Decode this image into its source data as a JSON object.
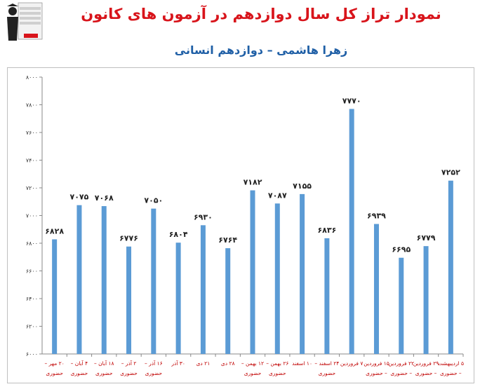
{
  "header": {
    "title": "نمودار تراز کل سال دوازدهم در آزمون های کانون",
    "subtitle": "زهرا هاشمی – دوازدهم انسانی"
  },
  "colors": {
    "bar": "#5b9bd5",
    "title": "#d8141b",
    "subtitle": "#1f5fa6",
    "xlabel": "#c00000"
  },
  "chart_data": {
    "type": "bar",
    "title": "نمودار تراز کل سال دوازدهم در آزمون های کانون",
    "subtitle": "زهرا هاشمی – دوازدهم انسانی",
    "ylim": [
      6000,
      8000
    ],
    "yticks": [
      "۶۰۰۰",
      "۶۲۰۰",
      "۶۴۰۰",
      "۶۶۰۰",
      "۶۸۰۰",
      "۷۰۰۰",
      "۷۲۰۰",
      "۷۴۰۰",
      "۷۶۰۰",
      "۷۸۰۰",
      "۸۰۰۰"
    ],
    "categories": [
      [
        "۲۰ مهر –",
        "حضوری"
      ],
      [
        "۴ آبان –",
        "حضوری"
      ],
      [
        "۱۸ آبان –",
        "حضوری"
      ],
      [
        "۲ آذر –",
        "حضوری"
      ],
      [
        "۱۶ آذر –",
        "حضوری"
      ],
      [
        "۳۰ آذر",
        ""
      ],
      [
        "۲۱ دی",
        ""
      ],
      [
        "۲۸ دی",
        ""
      ],
      [
        "۱۲ بهمن –",
        "حضوری"
      ],
      [
        "۲۶ بهمن –",
        "حضوری"
      ],
      [
        "۱۰ اسفند",
        ""
      ],
      [
        "۲۴ اسفند –",
        "حضوری"
      ],
      [
        "۷ فروردین",
        ""
      ],
      [
        "۱۵ فروردین",
        "– حضوری"
      ],
      [
        "۲۲ فروردین",
        "– حضوری"
      ],
      [
        "۲۹ فروردین",
        "– حضوری"
      ],
      [
        "۵ اردیبهشت",
        "– حضوری"
      ]
    ],
    "values": [
      6828,
      7075,
      7068,
      6776,
      7050,
      6804,
      6930,
      6764,
      7182,
      7087,
      7155,
      6836,
      7770,
      6939,
      6695,
      6779,
      7252
    ],
    "value_labels": [
      "۶۸۲۸",
      "۷۰۷۵",
      "۷۰۶۸",
      "۶۷۷۶",
      "۷۰۵۰",
      "۶۸۰۴",
      "۶۹۳۰",
      "۶۷۶۴",
      "۷۱۸۲",
      "۷۰۸۷",
      "۷۱۵۵",
      "۶۸۳۶",
      "۷۷۷۰",
      "۶۹۳۹",
      "۶۶۹۵",
      "۶۷۷۹",
      "۷۲۵۲"
    ]
  }
}
